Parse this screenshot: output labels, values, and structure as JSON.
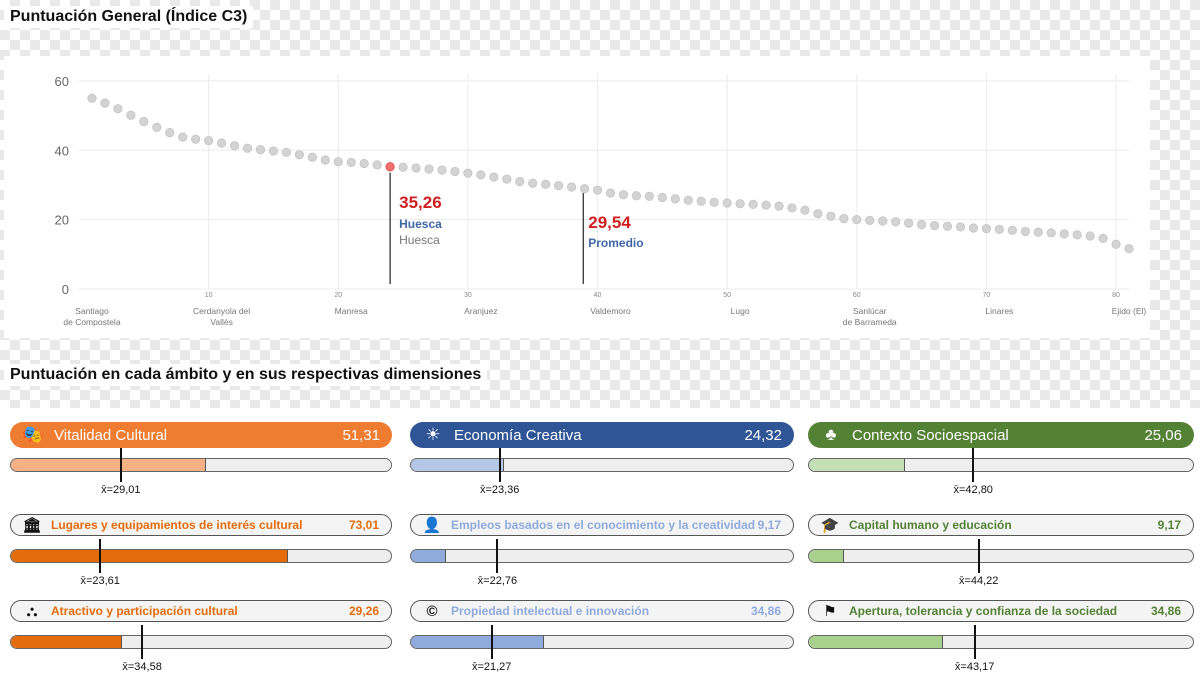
{
  "headings": {
    "general": "Puntuación General (Índice C3)",
    "dimensions": "Puntuación en cada ámbito y en sus respectivas dimensiones"
  },
  "chart_data": {
    "type": "scatter",
    "y_ticks": [
      "0",
      "20",
      "40",
      "60"
    ],
    "ylim": [
      0,
      62
    ],
    "x_ticks": [
      "10",
      "20",
      "30",
      "40",
      "50",
      "60",
      "70",
      "80"
    ],
    "xlim": [
      0,
      81
    ],
    "grid": true,
    "x": [
      1,
      2,
      3,
      4,
      5,
      6,
      7,
      8,
      9,
      10,
      11,
      12,
      13,
      14,
      15,
      16,
      17,
      18,
      19,
      20,
      21,
      22,
      23,
      24,
      25,
      26,
      27,
      28,
      29,
      30,
      31,
      32,
      33,
      34,
      35,
      36,
      37,
      38,
      39,
      40,
      41,
      42,
      43,
      44,
      45,
      46,
      47,
      48,
      49,
      50,
      51,
      52,
      53,
      54,
      55,
      56,
      57,
      58,
      59,
      60,
      61,
      62,
      63,
      64,
      65,
      66,
      67,
      68,
      69,
      70,
      71,
      72,
      73,
      74,
      75,
      76,
      77,
      78,
      79,
      80,
      81
    ],
    "y": [
      55.0,
      53.6,
      52.0,
      50.1,
      48.3,
      46.6,
      45.1,
      43.8,
      43.2,
      42.8,
      42.1,
      41.3,
      40.6,
      40.2,
      39.8,
      39.4,
      38.7,
      38.0,
      37.2,
      36.7,
      36.5,
      36.2,
      35.8,
      35.26,
      35.1,
      34.9,
      34.6,
      34.3,
      33.9,
      33.4,
      32.9,
      32.3,
      31.7,
      31.0,
      30.5,
      30.2,
      29.8,
      29.4,
      28.9,
      28.5,
      27.7,
      27.2,
      26.9,
      26.7,
      26.4,
      26.0,
      25.6,
      25.3,
      25.0,
      24.8,
      24.6,
      24.4,
      24.2,
      23.9,
      23.4,
      22.7,
      21.7,
      21.0,
      20.3,
      20.0,
      19.8,
      19.6,
      19.4,
      19.0,
      18.6,
      18.3,
      18.1,
      17.9,
      17.6,
      17.4,
      17.2,
      16.9,
      16.6,
      16.4,
      16.2,
      15.9,
      15.6,
      15.3,
      14.6,
      12.9,
      11.6
    ],
    "highlight_index": 23,
    "highlight_value": "35,26",
    "highlight_name_bold": "Huesca",
    "highlight_name": "Huesca",
    "average_position": 38.9,
    "average_value": "29,54",
    "average_label": "Promedio",
    "city_labels": [
      {
        "x": 1,
        "lines": [
          "Santiago",
          "de Compostela"
        ]
      },
      {
        "x": 11,
        "lines": [
          "Cerdanyola del",
          "Vallès"
        ]
      },
      {
        "x": 21,
        "lines": [
          "Manresa"
        ]
      },
      {
        "x": 31,
        "lines": [
          "Aranjuez"
        ]
      },
      {
        "x": 41,
        "lines": [
          "Valdemoro"
        ]
      },
      {
        "x": 51,
        "lines": [
          "Lugo"
        ]
      },
      {
        "x": 61,
        "lines": [
          "Sanlúcar",
          "de Barrameda"
        ]
      },
      {
        "x": 71,
        "lines": [
          "Linares"
        ]
      },
      {
        "x": 81,
        "lines": [
          "Ejido (El)"
        ]
      }
    ],
    "colors": {
      "dot": "#d3d3d3",
      "dot_stroke": "#c4c4c4",
      "highlight": "#f27070",
      "value_text": "#d01f1f",
      "name_text": "#3f67a8",
      "grid": "#ececec",
      "tick_text": "#666666"
    }
  },
  "dimensions": [
    {
      "main": {
        "icon": "theater-masks-icon",
        "glyph": "🎭",
        "label": "Vitalidad Cultural",
        "value": "51,31",
        "fill_pct": 51.31,
        "mean_pct": 29.01,
        "mean_label": "x̄=29,01",
        "color": "#ee7d31",
        "fill_color": "#f5b183",
        "text_color": "#ffffff"
      },
      "subs": [
        {
          "icon": "museum-icon",
          "glyph": "🏛",
          "label": "Lugares y equipamientos de interés cultural",
          "value": "73,01",
          "fill_pct": 73.01,
          "mean_pct": 23.61,
          "mean_label": "x̄=23,61",
          "text_color": "#e46c0a",
          "fill_color": "#e46c0a"
        },
        {
          "icon": "people-network-icon",
          "glyph": "⛬",
          "label": "Atractivo y participación cultural",
          "value": "29,26",
          "fill_pct": 29.26,
          "mean_pct": 34.58,
          "mean_label": "x̄=34,58",
          "text_color": "#e46c0a",
          "fill_color": "#e46c0a"
        }
      ]
    },
    {
      "main": {
        "icon": "lightbulb-gear-icon",
        "glyph": "☀",
        "label": "Economía Creativa",
        "value": "24,32",
        "fill_pct": 24.32,
        "mean_pct": 23.36,
        "mean_label": "x̄=23,36",
        "color": "#2f5597",
        "fill_color": "#b4c7e7",
        "text_color": "#ffffff"
      },
      "subs": [
        {
          "icon": "person-icon",
          "glyph": "👤",
          "label": "Empleos basados en el conocimiento y la creatividad",
          "value": "9,17",
          "fill_pct": 9.17,
          "mean_pct": 22.76,
          "mean_label": "x̄=22,76",
          "text_color": "#8faadc",
          "fill_color": "#8faadc"
        },
        {
          "icon": "copyright-icon",
          "glyph": "©",
          "label": "Propiedad intelectual e innovación",
          "value": "34,86",
          "fill_pct": 34.86,
          "mean_pct": 21.27,
          "mean_label": "x̄=21,27",
          "text_color": "#8faadc",
          "fill_color": "#8faadc"
        }
      ]
    },
    {
      "main": {
        "icon": "trees-icon",
        "glyph": "♣",
        "label": "Contexto Socioespacial",
        "value": "25,06",
        "fill_pct": 25.06,
        "mean_pct": 42.8,
        "mean_label": "x̄=42,80",
        "color": "#548235",
        "fill_color": "#c5e0b4",
        "text_color": "#ffffff"
      },
      "subs": [
        {
          "icon": "graduation-cap-icon",
          "glyph": "🎓",
          "label": "Capital humano y educación",
          "value": "9,17",
          "fill_pct": 9.17,
          "mean_pct": 44.22,
          "mean_label": "x̄=44,22",
          "text_color": "#548235",
          "fill_color": "#a9d18e"
        },
        {
          "icon": "rainbow-flag-icon",
          "glyph": "⚑",
          "label": "Apertura, tolerancia y confianza de la sociedad",
          "value": "34,86",
          "fill_pct": 34.86,
          "mean_pct": 43.17,
          "mean_label": "x̄=43,17",
          "text_color": "#548235",
          "fill_color": "#a9d18e"
        }
      ]
    }
  ]
}
